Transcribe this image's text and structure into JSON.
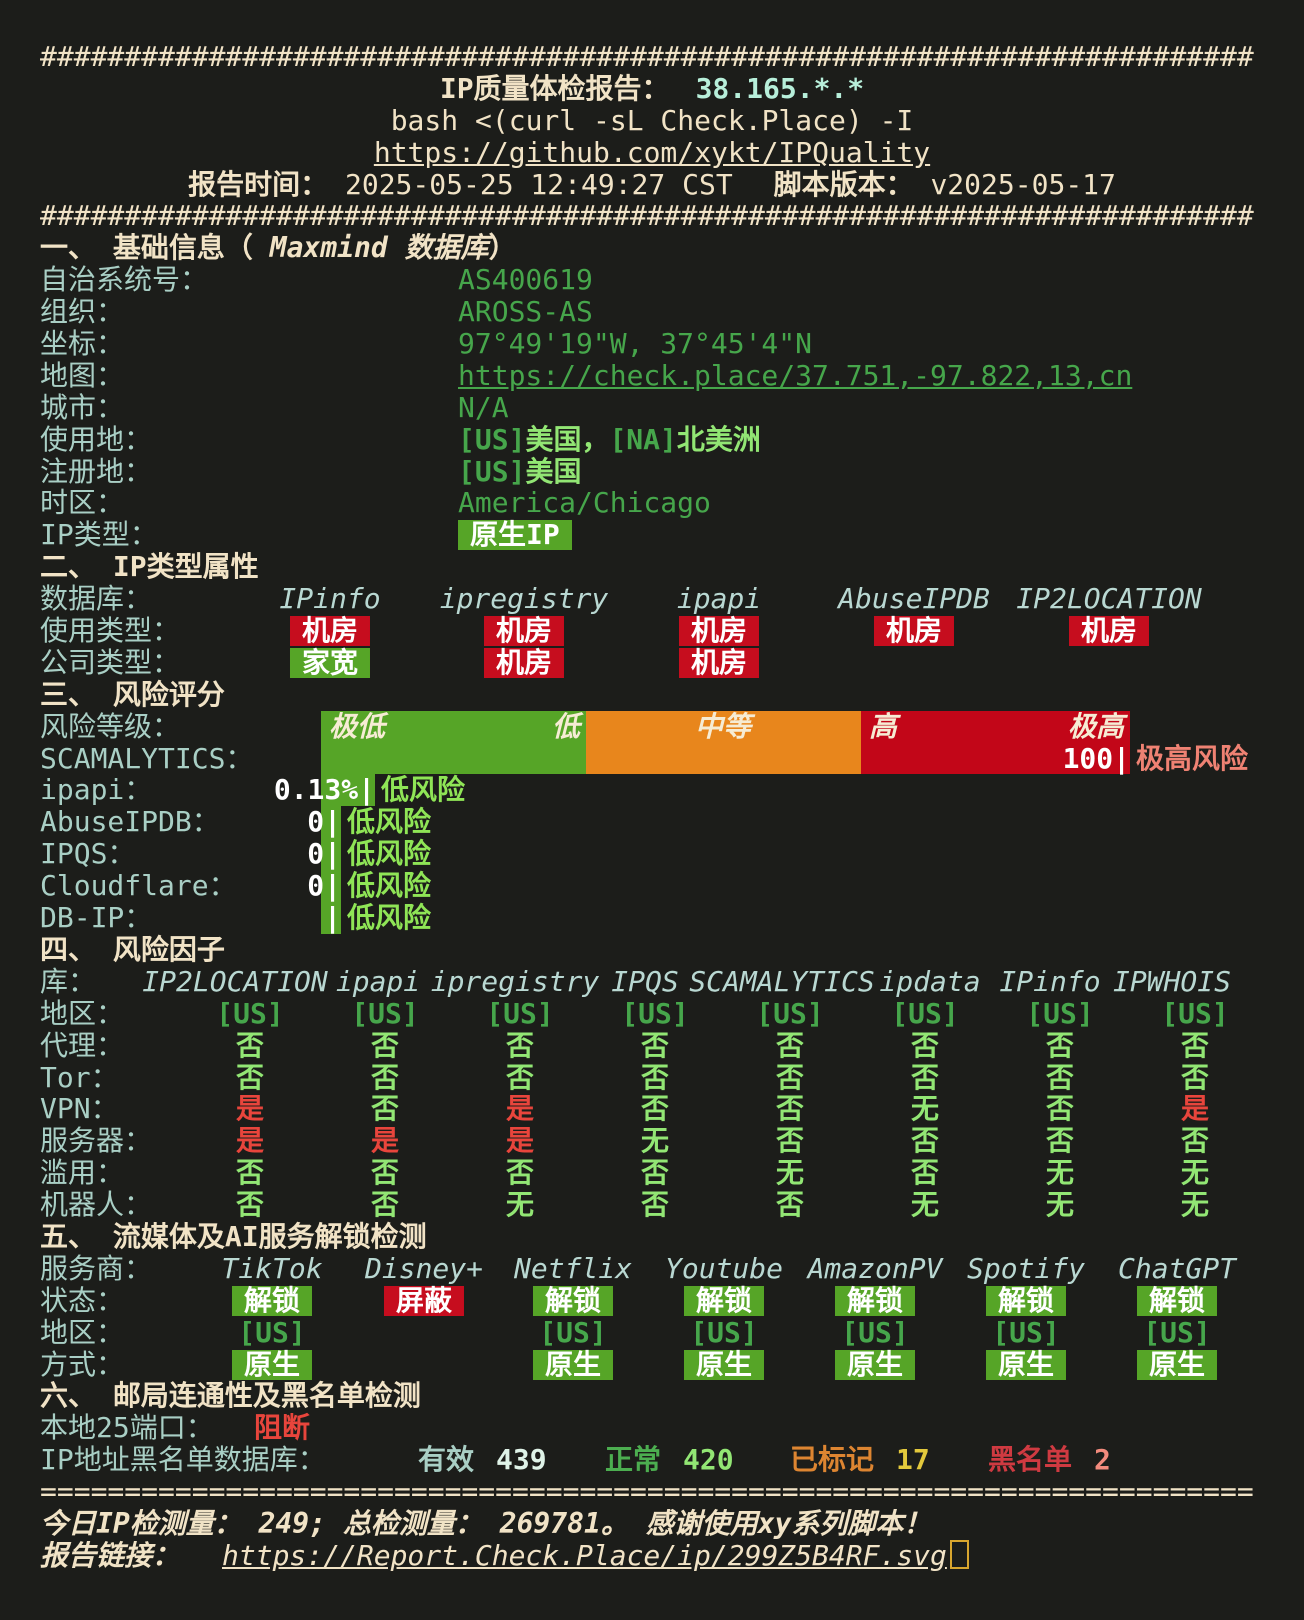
{
  "colors": {
    "background": "#1c1d1a",
    "cream": "#f1e3c6",
    "ip_cyan": "#b7efda",
    "label_cyan": "#a9cfc5",
    "green_badge": "#56a527",
    "red_badge": "#c60d1e",
    "bar_orange": "#e8861c",
    "bar_red": "#c20618",
    "green_value": "#92e674",
    "red_value": "#e8453c",
    "salmon": "#ef8273",
    "yellow": "#e3c93c"
  },
  "header": {
    "hash": "########################################################################",
    "title_label": "IP质量体检报告：",
    "ip": "38.165.*.*",
    "command": "bash <(curl -sL Check.Place) -I",
    "repo_link": "https://github.com/xykt/IPQuality",
    "time_label": "报告时间：",
    "time": "2025-05-25 12:49:27 CST",
    "version_label": "脚本版本：",
    "version": "v2025-05-17"
  },
  "basic": {
    "heading_prefix": "一、 基础信息（ ",
    "heading_em": "Maxmind 数据库",
    "heading_suffix": "）",
    "rows": [
      {
        "key": "asn",
        "label": "自治系统号：",
        "value": "AS400619",
        "style": "green"
      },
      {
        "key": "org",
        "label": "组织：",
        "value": "AROSS-AS",
        "style": "green"
      },
      {
        "key": "coords",
        "label": "坐标：",
        "value": "97°49'19\"W, 37°45'4\"N",
        "style": "green"
      },
      {
        "key": "map",
        "label": "地图：",
        "value": "https://check.place/37.751,-97.822,13,cn",
        "style": "link"
      },
      {
        "key": "city",
        "label": "城市：",
        "value": "N/A",
        "style": "green"
      },
      {
        "key": "usage-location",
        "label": "使用地：",
        "value": "[US]美国，[NA]北美洲",
        "style": "mixed"
      },
      {
        "key": "registration-location",
        "label": "注册地：",
        "value": "[US]美国",
        "style": "mixed"
      },
      {
        "key": "timezone",
        "label": "时区：",
        "value": "America/Chicago",
        "style": "green"
      },
      {
        "key": "ip-type",
        "label": "IP类型：",
        "value": "原生IP",
        "style": "badge-green"
      }
    ]
  },
  "iptype": {
    "heading": "二、 IP类型属性",
    "db_label": "数据库：",
    "columns": [
      "IPinfo",
      "ipregistry",
      "ipapi",
      "AbuseIPDB",
      "IP2LOCATION"
    ],
    "rows": [
      {
        "key": "usage-type",
        "label": "使用类型：",
        "cells": [
          {
            "text": "机房",
            "badge": "red"
          },
          {
            "text": "机房",
            "badge": "red"
          },
          {
            "text": "机房",
            "badge": "red"
          },
          {
            "text": "机房",
            "badge": "red"
          },
          {
            "text": "机房",
            "badge": "red"
          }
        ]
      },
      {
        "key": "company-type",
        "label": "公司类型：",
        "cells": [
          {
            "text": "家宽",
            "badge": "green"
          },
          {
            "text": "机房",
            "badge": "red"
          },
          {
            "text": "机房",
            "badge": "red"
          },
          null,
          null
        ]
      }
    ]
  },
  "risk": {
    "heading": "三、 风险评分",
    "scale_label": "风险等级：",
    "scale_labels": [
      "极低",
      "低",
      "中等",
      "高",
      "极高"
    ],
    "scores": [
      {
        "key": "scamalytics",
        "label": "SCAMALYTICS：",
        "score": "100",
        "risk": "极高风险",
        "level": "veryhigh",
        "full": true
      },
      {
        "key": "ipapi",
        "label": "ipapi：",
        "score": "0.13%",
        "risk": "低风险",
        "level": "low",
        "full": false
      },
      {
        "key": "abuseipdb",
        "label": "AbuseIPDB：",
        "score": "0",
        "risk": "低风险",
        "level": "low",
        "full": false
      },
      {
        "key": "ipqs",
        "label": "IPQS：",
        "score": "0",
        "risk": "低风险",
        "level": "low",
        "full": false
      },
      {
        "key": "cloudflare",
        "label": "Cloudflare：",
        "score": "0",
        "risk": "低风险",
        "level": "low",
        "full": false
      },
      {
        "key": "dbip",
        "label": "DB-IP：",
        "score": "",
        "risk": "低风险",
        "level": "low",
        "full": false
      }
    ]
  },
  "factors": {
    "heading": "四、 风险因子",
    "db_label": "库：",
    "columns": [
      "IP2LOCATION",
      "ipapi",
      "ipregistry",
      "IPQS",
      "SCAMALYTICS",
      "ipdata",
      "IPinfo",
      "IPWHOIS"
    ],
    "rows": [
      {
        "key": "region",
        "label": "地区：",
        "cells": [
          "[US]",
          "[US]",
          "[US]",
          "[US]",
          "[US]",
          "[US]",
          "[US]",
          "[US]"
        ]
      },
      {
        "key": "proxy",
        "label": "代理：",
        "cells": [
          "否",
          "否",
          "否",
          "否",
          "否",
          "否",
          "否",
          "否"
        ]
      },
      {
        "key": "tor",
        "label": "Tor：",
        "cells": [
          "否",
          "否",
          "否",
          "否",
          "否",
          "否",
          "否",
          "否"
        ]
      },
      {
        "key": "vpn",
        "label": "VPN：",
        "cells": [
          "是",
          "否",
          "是",
          "否",
          "否",
          "无",
          "否",
          "是"
        ]
      },
      {
        "key": "server",
        "label": "服务器：",
        "cells": [
          "是",
          "是",
          "是",
          "无",
          "否",
          "否",
          "否",
          "否"
        ]
      },
      {
        "key": "abuse",
        "label": "滥用：",
        "cells": [
          "否",
          "否",
          "否",
          "否",
          "无",
          "否",
          "无",
          "无"
        ]
      },
      {
        "key": "robot",
        "label": "机器人：",
        "cells": [
          "否",
          "否",
          "无",
          "否",
          "否",
          "无",
          "无",
          "无"
        ]
      }
    ]
  },
  "media": {
    "heading": "五、 流媒体及AI服务解锁检测",
    "provider_label": "服务商：",
    "columns": [
      "TikTok",
      "Disney+",
      "Netflix",
      "Youtube",
      "AmazonPV",
      "Spotify",
      "ChatGPT"
    ],
    "rows": [
      {
        "key": "status",
        "label": "状态：",
        "cells": [
          {
            "text": "解锁",
            "badge": "green"
          },
          {
            "text": "屏蔽",
            "badge": "red"
          },
          {
            "text": "解锁",
            "badge": "green"
          },
          {
            "text": "解锁",
            "badge": "green"
          },
          {
            "text": "解锁",
            "badge": "green"
          },
          {
            "text": "解锁",
            "badge": "green"
          },
          {
            "text": "解锁",
            "badge": "green"
          }
        ]
      },
      {
        "key": "region",
        "label": "地区：",
        "cells": [
          {
            "text": "[US]"
          },
          null,
          {
            "text": "[US]"
          },
          {
            "text": "[US]"
          },
          {
            "text": "[US]"
          },
          {
            "text": "[US]"
          },
          {
            "text": "[US]"
          }
        ]
      },
      {
        "key": "method",
        "label": "方式：",
        "cells": [
          {
            "text": "原生",
            "badge": "green"
          },
          null,
          {
            "text": "原生",
            "badge": "green"
          },
          {
            "text": "原生",
            "badge": "green"
          },
          {
            "text": "原生",
            "badge": "green"
          },
          {
            "text": "原生",
            "badge": "green"
          },
          {
            "text": "原生",
            "badge": "green"
          }
        ]
      }
    ]
  },
  "mail": {
    "heading": "六、 邮局连通性及黑名单检测",
    "port_label": "本地25端口：",
    "port_status": "阻断",
    "blacklist_label": "IP地址黑名单数据库：",
    "stats": [
      {
        "key": "valid",
        "label": "有效",
        "value": "439",
        "style": "valid"
      },
      {
        "key": "normal",
        "label": "正常",
        "value": "420",
        "style": "norm"
      },
      {
        "key": "marked",
        "label": "已标记",
        "value": "17",
        "style": "mark"
      },
      {
        "key": "listed",
        "label": "黑名单",
        "value": "2",
        "style": "list"
      }
    ]
  },
  "footer": {
    "separator": "========================================================================",
    "stats_line": "今日IP检测量： 249;  总检测量： 269781。 感谢使用xy系列脚本！",
    "report_label": "报告链接：",
    "report_link": "https://Report.Check.Place/ip/299Z5B4RF.svg"
  }
}
